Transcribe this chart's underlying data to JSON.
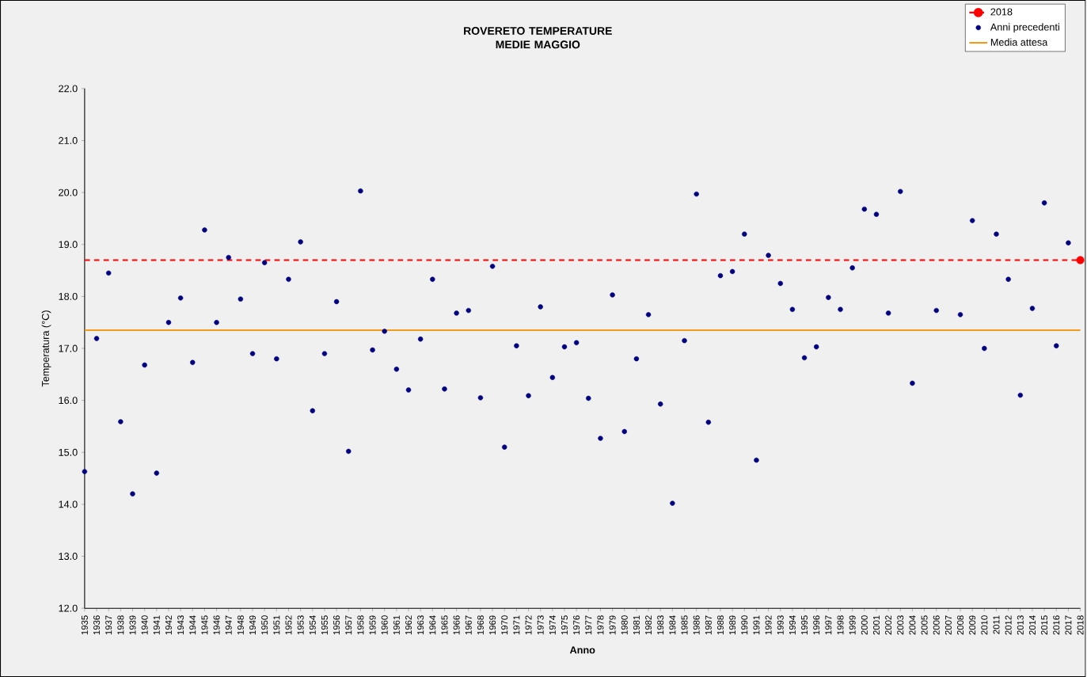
{
  "chart_data": {
    "type": "scatter",
    "title": "ROVERETO TEMPERATURE MEDIE MAGGIO",
    "xlabel": "Anno",
    "ylabel": "Temperatura (°C)",
    "categories": [
      "1935",
      "1936",
      "1937",
      "1938",
      "1939",
      "1940",
      "1941",
      "1942",
      "1943",
      "1944",
      "1945",
      "1946",
      "1947",
      "1948",
      "1949",
      "1950",
      "1951",
      "1952",
      "1953",
      "1954",
      "1955",
      "1956",
      "1957",
      "1958",
      "1959",
      "1960",
      "1961",
      "1962",
      "1963",
      "1964",
      "1965",
      "1966",
      "1967",
      "1968",
      "1969",
      "1970",
      "1971",
      "1972",
      "1973",
      "1974",
      "1975",
      "1976",
      "1977",
      "1978",
      "1979",
      "1980",
      "1981",
      "1982",
      "1983",
      "1984",
      "1985",
      "1986",
      "1987",
      "1988",
      "1989",
      "1990",
      "1991",
      "1992",
      "1993",
      "1994",
      "1995",
      "1996",
      "1997",
      "1998",
      "1999",
      "2000",
      "2001",
      "2002",
      "2003",
      "2004",
      "2005",
      "2006",
      "2007",
      "2008",
      "2009",
      "2010",
      "2011",
      "2012",
      "2013",
      "2014",
      "2015",
      "2016",
      "2017",
      "2018"
    ],
    "series": [
      {
        "name": "2018",
        "color": "#ff0000",
        "values": [
          null,
          null,
          null,
          null,
          null,
          null,
          null,
          null,
          null,
          null,
          null,
          null,
          null,
          null,
          null,
          null,
          null,
          null,
          null,
          null,
          null,
          null,
          null,
          null,
          null,
          null,
          null,
          null,
          null,
          null,
          null,
          null,
          null,
          null,
          null,
          null,
          null,
          null,
          null,
          null,
          null,
          null,
          null,
          null,
          null,
          null,
          null,
          null,
          null,
          null,
          null,
          null,
          null,
          null,
          null,
          null,
          null,
          null,
          null,
          null,
          null,
          null,
          null,
          null,
          null,
          null,
          null,
          null,
          null,
          null,
          null,
          null,
          null,
          null,
          null,
          null,
          null,
          null,
          null,
          null,
          null,
          null,
          null,
          18.7
        ]
      },
      {
        "name": "Anni precedenti",
        "color": "#000080",
        "values": [
          14.63,
          17.19,
          18.45,
          15.59,
          14.2,
          16.68,
          14.6,
          17.5,
          17.97,
          16.73,
          19.28,
          17.5,
          18.75,
          17.95,
          16.9,
          18.65,
          16.8,
          18.33,
          19.05,
          15.8,
          16.9,
          17.9,
          15.02,
          20.03,
          16.97,
          17.33,
          16.6,
          16.2,
          17.18,
          18.33,
          16.22,
          17.68,
          17.73,
          16.05,
          18.58,
          15.1,
          17.05,
          16.09,
          17.8,
          16.44,
          17.03,
          17.11,
          16.04,
          15.27,
          18.03,
          15.4,
          16.8,
          17.65,
          15.93,
          14.02,
          17.15,
          19.97,
          15.58,
          18.4,
          18.48,
          19.2,
          14.85,
          18.79,
          18.25,
          17.75,
          16.82,
          17.03,
          17.98,
          17.75,
          18.55,
          19.68,
          19.58,
          17.68,
          20.02,
          16.33,
          null,
          17.73,
          null,
          17.65,
          19.46,
          17.0,
          19.2,
          18.33,
          16.1,
          17.77,
          19.8,
          17.05,
          19.03,
          null
        ]
      }
    ],
    "ref_lines": [
      {
        "axis": "y",
        "value": 18.7,
        "color": "#ff0000",
        "line_style": "dashed"
      },
      {
        "axis": "y",
        "value": 17.35,
        "label": "Media attesa",
        "color": "#f59b1a",
        "line_style": "solid"
      }
    ],
    "ylim": [
      12,
      22
    ],
    "yticks": [
      {
        "value": 12,
        "label": "12.0"
      },
      {
        "value": 13,
        "label": "13.0"
      },
      {
        "value": 14,
        "label": "14.0"
      },
      {
        "value": 15,
        "label": "15.0"
      },
      {
        "value": 16,
        "label": "16.0"
      },
      {
        "value": 17,
        "label": "17.0"
      },
      {
        "value": 18,
        "label": "18.0"
      },
      {
        "value": 19,
        "label": "19.0"
      },
      {
        "value": 20,
        "label": "20.0"
      },
      {
        "value": 21,
        "label": "21.0"
      },
      {
        "value": 22,
        "label": "22.0"
      }
    ],
    "grid": false,
    "legend": "top right",
    "marker": "circle"
  }
}
